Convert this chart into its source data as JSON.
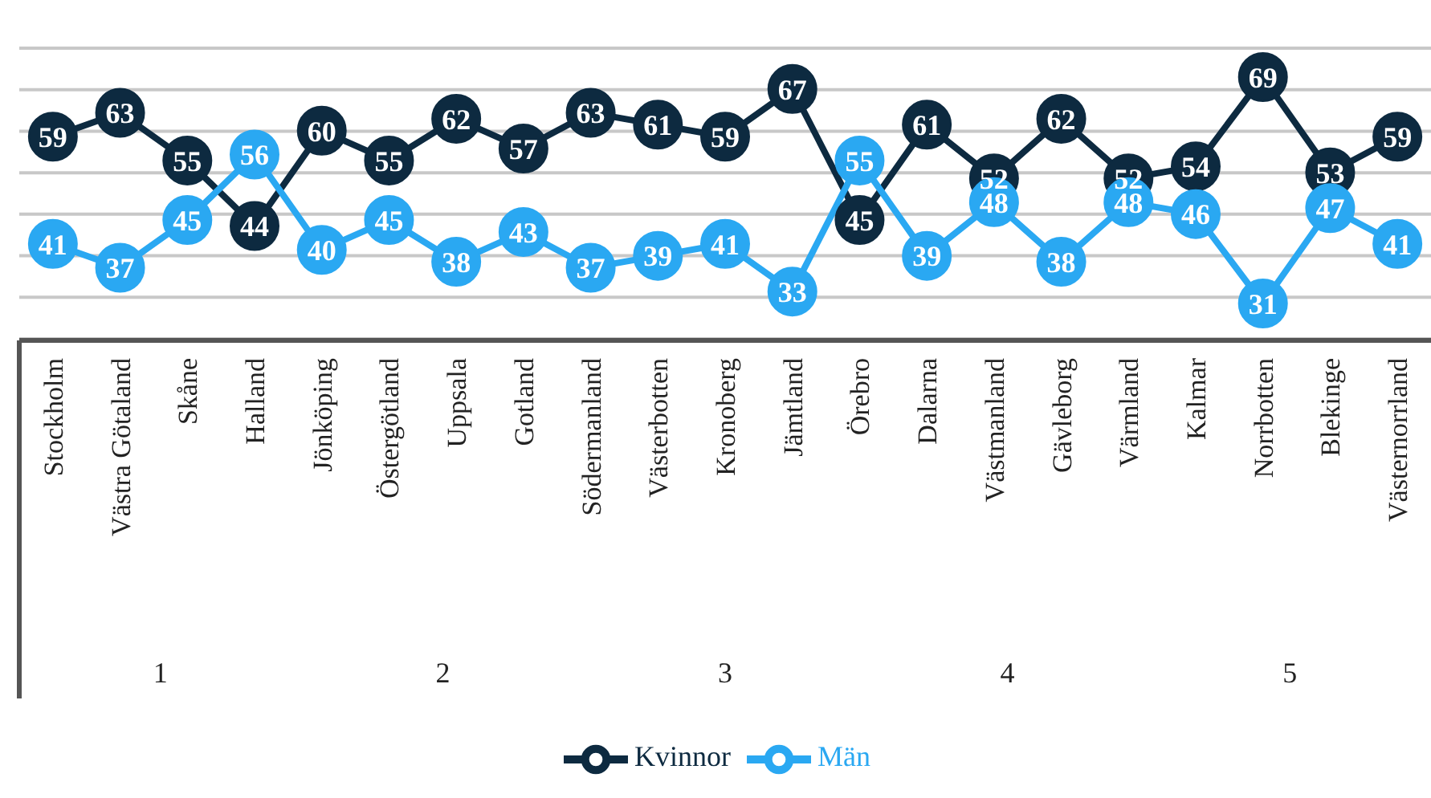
{
  "chart_data": {
    "type": "line",
    "categories": [
      "Stockholm",
      "Västra Götaland",
      "Skåne",
      "Halland",
      "Jönköping",
      "Östergötland",
      "Uppsala",
      "Gotland",
      "Södermanland",
      "Västerbotten",
      "Kronoberg",
      "Jämtland",
      "Örebro",
      "Dalarna",
      "Västmanland",
      "Gävleborg",
      "Värmland",
      "Kalmar",
      "Norrbotten",
      "Blekinge",
      "Västernorrland"
    ],
    "series": [
      {
        "name": "Kvinnor",
        "color": "#0d2a40",
        "values": [
          59,
          63,
          55,
          44,
          60,
          55,
          62,
          57,
          63,
          61,
          59,
          67,
          45,
          61,
          52,
          62,
          52,
          54,
          69,
          53,
          59
        ]
      },
      {
        "name": "Män",
        "color": "#2aa8f2",
        "values": [
          41,
          37,
          45,
          56,
          40,
          45,
          38,
          43,
          37,
          39,
          41,
          33,
          55,
          39,
          48,
          38,
          48,
          46,
          31,
          47,
          41
        ]
      }
    ],
    "tick_labels": "x",
    "grid": "y",
    "legend": "bottom",
    "marker": "circle",
    "line_style": "solid",
    "data_labels": true,
    "annotations": [
      "1",
      "2",
      "3",
      "4",
      "5"
    ]
  }
}
